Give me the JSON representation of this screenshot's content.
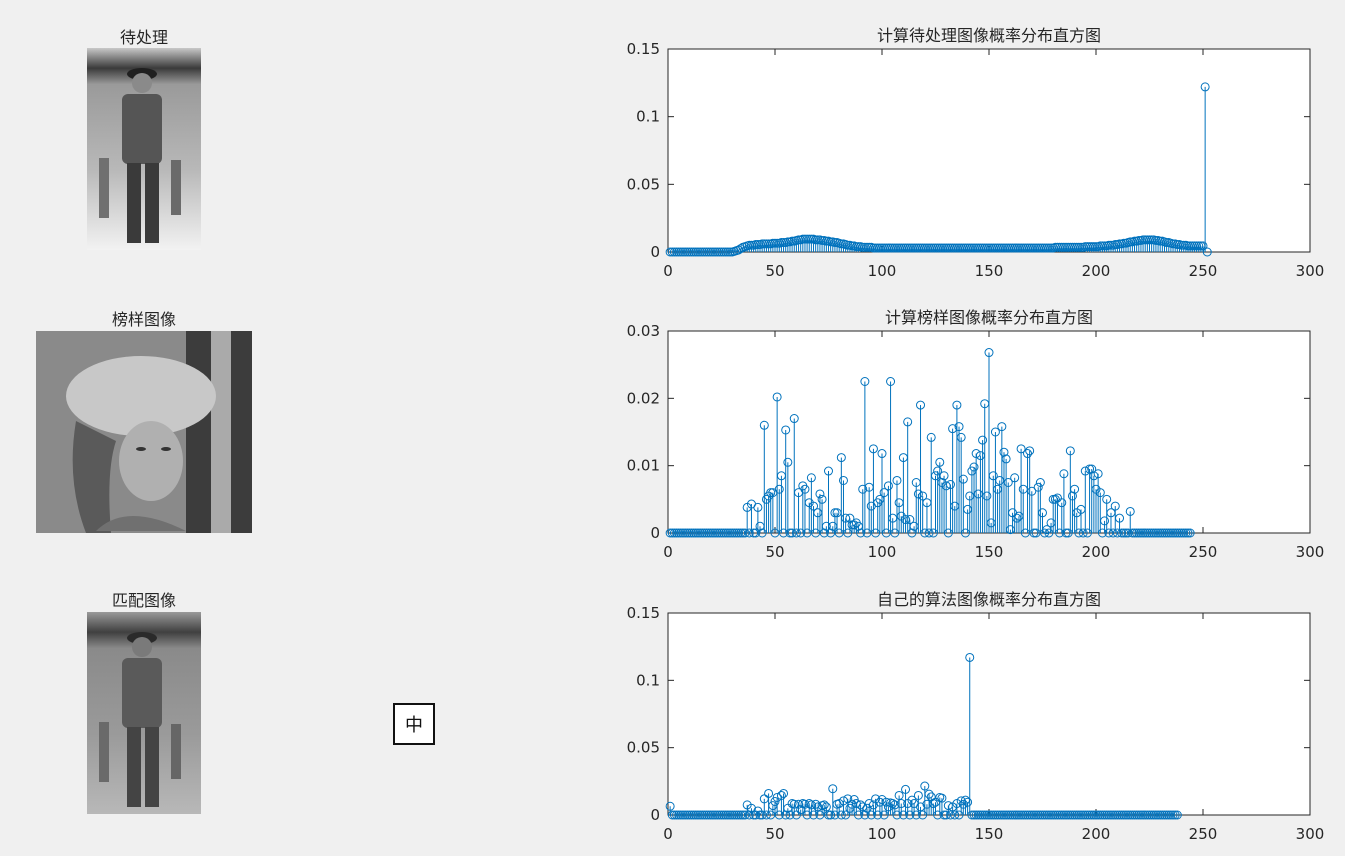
{
  "images": [
    {
      "title": "待处理",
      "icon": "fisherman-photo"
    },
    {
      "title": "榜样图像",
      "icon": "portrait-photo"
    },
    {
      "title": "匹配图像",
      "icon": "fisherman-photo"
    }
  ],
  "ime_indicator": "中",
  "colors": {
    "stem": "#0072bd",
    "background": "#f0f0f0",
    "axes": "#262626"
  },
  "chart_data": [
    {
      "type": "stem",
      "title": "计算待处理图像概率分布直方图",
      "xlim": [
        0,
        300
      ],
      "ylim": [
        0,
        0.15
      ],
      "xticks": [
        0,
        50,
        100,
        150,
        200,
        250,
        300
      ],
      "yticks": [
        0,
        0.05,
        0.1,
        0.15
      ],
      "xtick_labels": [
        "0",
        "50",
        "100",
        "150",
        "200",
        "250",
        "300"
      ],
      "ytick_labels": [
        "0",
        "0.05",
        "0.1",
        "0.15"
      ],
      "y": [
        0,
        0,
        0,
        0,
        0,
        0,
        0,
        0,
        0,
        0,
        0,
        0,
        0,
        0,
        0,
        0,
        0,
        0,
        0,
        0,
        0,
        0,
        0,
        0,
        0,
        0,
        0,
        0,
        0,
        0,
        0.0005,
        0.001,
        0.0015,
        0.0025,
        0.0035,
        0.004,
        0.0045,
        0.005,
        0.005,
        0.005,
        0.0055,
        0.0055,
        0.0055,
        0.006,
        0.006,
        0.006,
        0.006,
        0.006,
        0.0065,
        0.0065,
        0.0065,
        0.0065,
        0.007,
        0.007,
        0.007,
        0.0075,
        0.0075,
        0.008,
        0.008,
        0.0085,
        0.009,
        0.009,
        0.0095,
        0.0095,
        0.0095,
        0.0095,
        0.0095,
        0.0095,
        0.009,
        0.009,
        0.009,
        0.0085,
        0.0085,
        0.008,
        0.008,
        0.0075,
        0.0075,
        0.007,
        0.007,
        0.0065,
        0.006,
        0.006,
        0.0055,
        0.005,
        0.005,
        0.0045,
        0.0045,
        0.004,
        0.004,
        0.004,
        0.0035,
        0.0035,
        0.0035,
        0.0035,
        0.0035,
        0.003,
        0.003,
        0.003,
        0.003,
        0.003,
        0.003,
        0.003,
        0.003,
        0.003,
        0.003,
        0.003,
        0.003,
        0.003,
        0.003,
        0.003,
        0.003,
        0.003,
        0.003,
        0.003,
        0.003,
        0.003,
        0.003,
        0.003,
        0.003,
        0.003,
        0.003,
        0.003,
        0.003,
        0.003,
        0.003,
        0.003,
        0.003,
        0.003,
        0.003,
        0.003,
        0.003,
        0.003,
        0.003,
        0.003,
        0.003,
        0.003,
        0.003,
        0.003,
        0.003,
        0.003,
        0.003,
        0.003,
        0.003,
        0.003,
        0.003,
        0.003,
        0.003,
        0.003,
        0.003,
        0.003,
        0.003,
        0.003,
        0.003,
        0.003,
        0.003,
        0.003,
        0.003,
        0.003,
        0.003,
        0.003,
        0.003,
        0.003,
        0.003,
        0.003,
        0.003,
        0.003,
        0.003,
        0.003,
        0.003,
        0.003,
        0.003,
        0.003,
        0.003,
        0.003,
        0.003,
        0.003,
        0.003,
        0.003,
        0.003,
        0.003,
        0.0035,
        0.0035,
        0.0035,
        0.0035,
        0.0035,
        0.0035,
        0.0035,
        0.0035,
        0.0035,
        0.0035,
        0.0035,
        0.0035,
        0.0035,
        0.0035,
        0.004,
        0.004,
        0.004,
        0.004,
        0.004,
        0.004,
        0.004,
        0.0045,
        0.0045,
        0.0045,
        0.0045,
        0.005,
        0.005,
        0.005,
        0.0055,
        0.0055,
        0.006,
        0.006,
        0.0065,
        0.0065,
        0.007,
        0.0075,
        0.0075,
        0.008,
        0.008,
        0.0085,
        0.0085,
        0.009,
        0.009,
        0.009,
        0.009,
        0.009,
        0.009,
        0.0085,
        0.0085,
        0.008,
        0.008,
        0.0075,
        0.007,
        0.007,
        0.0065,
        0.006,
        0.006,
        0.0055,
        0.0055,
        0.005,
        0.005,
        0.005,
        0.0045,
        0.0045,
        0.0045,
        0.0045,
        0.0045,
        0.0045,
        0.0045,
        0.0045,
        0.122,
        0
      ]
    },
    {
      "type": "stem",
      "title": "计算榜样图像概率分布直方图",
      "xlim": [
        0,
        300
      ],
      "ylim": [
        0,
        0.03
      ],
      "xticks": [
        0,
        50,
        100,
        150,
        200,
        250,
        300
      ],
      "yticks": [
        0,
        0.01,
        0.02,
        0.03
      ],
      "xtick_labels": [
        "0",
        "50",
        "100",
        "150",
        "200",
        "250",
        "300"
      ],
      "ytick_labels": [
        "0",
        "0.01",
        "0.02",
        "0.03"
      ],
      "y": [
        0,
        0,
        0,
        0,
        0,
        0,
        0,
        0,
        0,
        0,
        0,
        0,
        0,
        0,
        0,
        0,
        0,
        0,
        0,
        0,
        0,
        0,
        0,
        0,
        0,
        0,
        0,
        0,
        0,
        0,
        0,
        0,
        0,
        0,
        0,
        0,
        0.0038,
        0,
        0.0043,
        0,
        0,
        0.0038,
        0.001,
        0,
        0.016,
        0.005,
        0.0055,
        0.006,
        0.006,
        0,
        0.0202,
        0.0065,
        0.0085,
        0,
        0.0153,
        0.0105,
        0,
        0,
        0.017,
        0,
        0.006,
        0,
        0.007,
        0.0065,
        0,
        0.0045,
        0.0082,
        0.004,
        0,
        0.003,
        0.0058,
        0.005,
        0,
        0.001,
        0.0092,
        0,
        0.001,
        0.003,
        0.003,
        0,
        0.0112,
        0.0078,
        0.0022,
        0,
        0.0022,
        0.0012,
        0.0012,
        0.0015,
        0.001,
        0,
        0.0065,
        0.0225,
        0,
        0.0068,
        0.004,
        0.0125,
        0,
        0.0045,
        0.005,
        0.0118,
        0.006,
        0,
        0.007,
        0.0225,
        0.0022,
        0,
        0.0078,
        0.0045,
        0.0025,
        0.0112,
        0.002,
        0.0165,
        0.002,
        0,
        0.001,
        0.0075,
        0.0058,
        0.019,
        0.0055,
        0,
        0.0045,
        0,
        0.0142,
        0,
        0.0085,
        0.0092,
        0.0105,
        0.0075,
        0.0085,
        0.007,
        0,
        0.0072,
        0.0155,
        0.004,
        0.019,
        0.0158,
        0.0142,
        0.008,
        0,
        0.0035,
        0.0055,
        0.0092,
        0.0098,
        0.0118,
        0.0058,
        0.0115,
        0.0138,
        0.0192,
        0.0055,
        0.0268,
        0.0015,
        0.0085,
        0.015,
        0.0065,
        0.0078,
        0.0158,
        0.012,
        0.011,
        0.0075,
        0.0005,
        0.003,
        0.0082,
        0.0022,
        0.0025,
        0.0125,
        0.0065,
        0,
        0.0118,
        0.0122,
        0.0062,
        0,
        0,
        0.0068,
        0.0075,
        0.003,
        0,
        0.0005,
        0,
        0.0015,
        0.005,
        0.005,
        0.0052,
        0,
        0.0045,
        0.0088,
        0,
        0,
        0.0122,
        0.0055,
        0.0065,
        0.003,
        0,
        0.0035,
        0,
        0.0092,
        0,
        0.0095,
        0.0095,
        0.0085,
        0.0065,
        0.0088,
        0.006,
        0,
        0.0018,
        0.005,
        0,
        0.003,
        0,
        0.004,
        0,
        0.0022,
        0,
        0,
        0,
        0,
        0.0032,
        0,
        0,
        0,
        0,
        0,
        0,
        0,
        0,
        0,
        0,
        0,
        0,
        0,
        0,
        0,
        0,
        0,
        0,
        0,
        0,
        0,
        0,
        0,
        0,
        0,
        0,
        0,
        0
      ]
    },
    {
      "type": "stem",
      "title": "自己的算法图像概率分布直方图",
      "xlim": [
        0,
        300
      ],
      "ylim": [
        0,
        0.15
      ],
      "xticks": [
        0,
        50,
        100,
        150,
        200,
        250,
        300
      ],
      "yticks": [
        0,
        0.05,
        0.1,
        0.15
      ],
      "xtick_labels": [
        "0",
        "50",
        "100",
        "150",
        "200",
        "250",
        "300"
      ],
      "ytick_labels": [
        "0",
        "0.05",
        "0.1",
        "0.15"
      ],
      "y": [
        0.0065,
        0,
        0,
        0,
        0,
        0,
        0,
        0,
        0,
        0,
        0,
        0,
        0,
        0,
        0,
        0,
        0,
        0,
        0,
        0,
        0,
        0,
        0,
        0,
        0,
        0,
        0,
        0,
        0,
        0,
        0,
        0,
        0,
        0,
        0,
        0,
        0.0075,
        0,
        0.005,
        0,
        0,
        0.003,
        0,
        0,
        0.012,
        0,
        0.016,
        0,
        0.007,
        0.01,
        0.013,
        0,
        0.0145,
        0.016,
        0,
        0.005,
        0,
        0.0085,
        0.008,
        0,
        0.008,
        0.004,
        0.0085,
        0.008,
        0,
        0.0085,
        0.0075,
        0,
        0.008,
        0.006,
        0,
        0.007,
        0.0075,
        0.006,
        0,
        0,
        0.0195,
        0,
        0.008,
        0.0085,
        0,
        0.0105,
        0,
        0.012,
        0.005,
        0.008,
        0.0115,
        0.0085,
        0,
        0.0075,
        0.006,
        0,
        0.005,
        0.0085,
        0,
        0.0075,
        0.012,
        0,
        0.0095,
        0.0115,
        0,
        0.0095,
        0.006,
        0.009,
        0.0085,
        0.0075,
        0,
        0.0145,
        0.0085,
        0,
        0.019,
        0.0085,
        0,
        0.011,
        0.0085,
        0,
        0.0145,
        0.006,
        0,
        0.0215,
        0.008,
        0.0155,
        0.0135,
        0.0085,
        0.0095,
        0,
        0.013,
        0.0125,
        0,
        0,
        0.007,
        0,
        0.006,
        0,
        0.0085,
        0,
        0.0105,
        0.008,
        0.011,
        0.0095,
        0.117,
        0,
        0,
        0,
        0,
        0,
        0,
        0,
        0,
        0,
        0,
        0,
        0,
        0,
        0,
        0,
        0,
        0,
        0,
        0,
        0,
        0,
        0,
        0,
        0,
        0,
        0,
        0,
        0,
        0,
        0,
        0,
        0,
        0,
        0,
        0,
        0,
        0,
        0,
        0,
        0,
        0,
        0,
        0,
        0,
        0,
        0,
        0,
        0,
        0,
        0,
        0,
        0,
        0,
        0,
        0,
        0,
        0,
        0,
        0,
        0,
        0,
        0,
        0,
        0,
        0,
        0,
        0,
        0,
        0,
        0,
        0,
        0,
        0,
        0,
        0,
        0,
        0,
        0,
        0,
        0,
        0,
        0,
        0,
        0,
        0,
        0,
        0,
        0,
        0,
        0,
        0,
        0,
        0,
        0,
        0,
        0,
        0
      ]
    }
  ]
}
